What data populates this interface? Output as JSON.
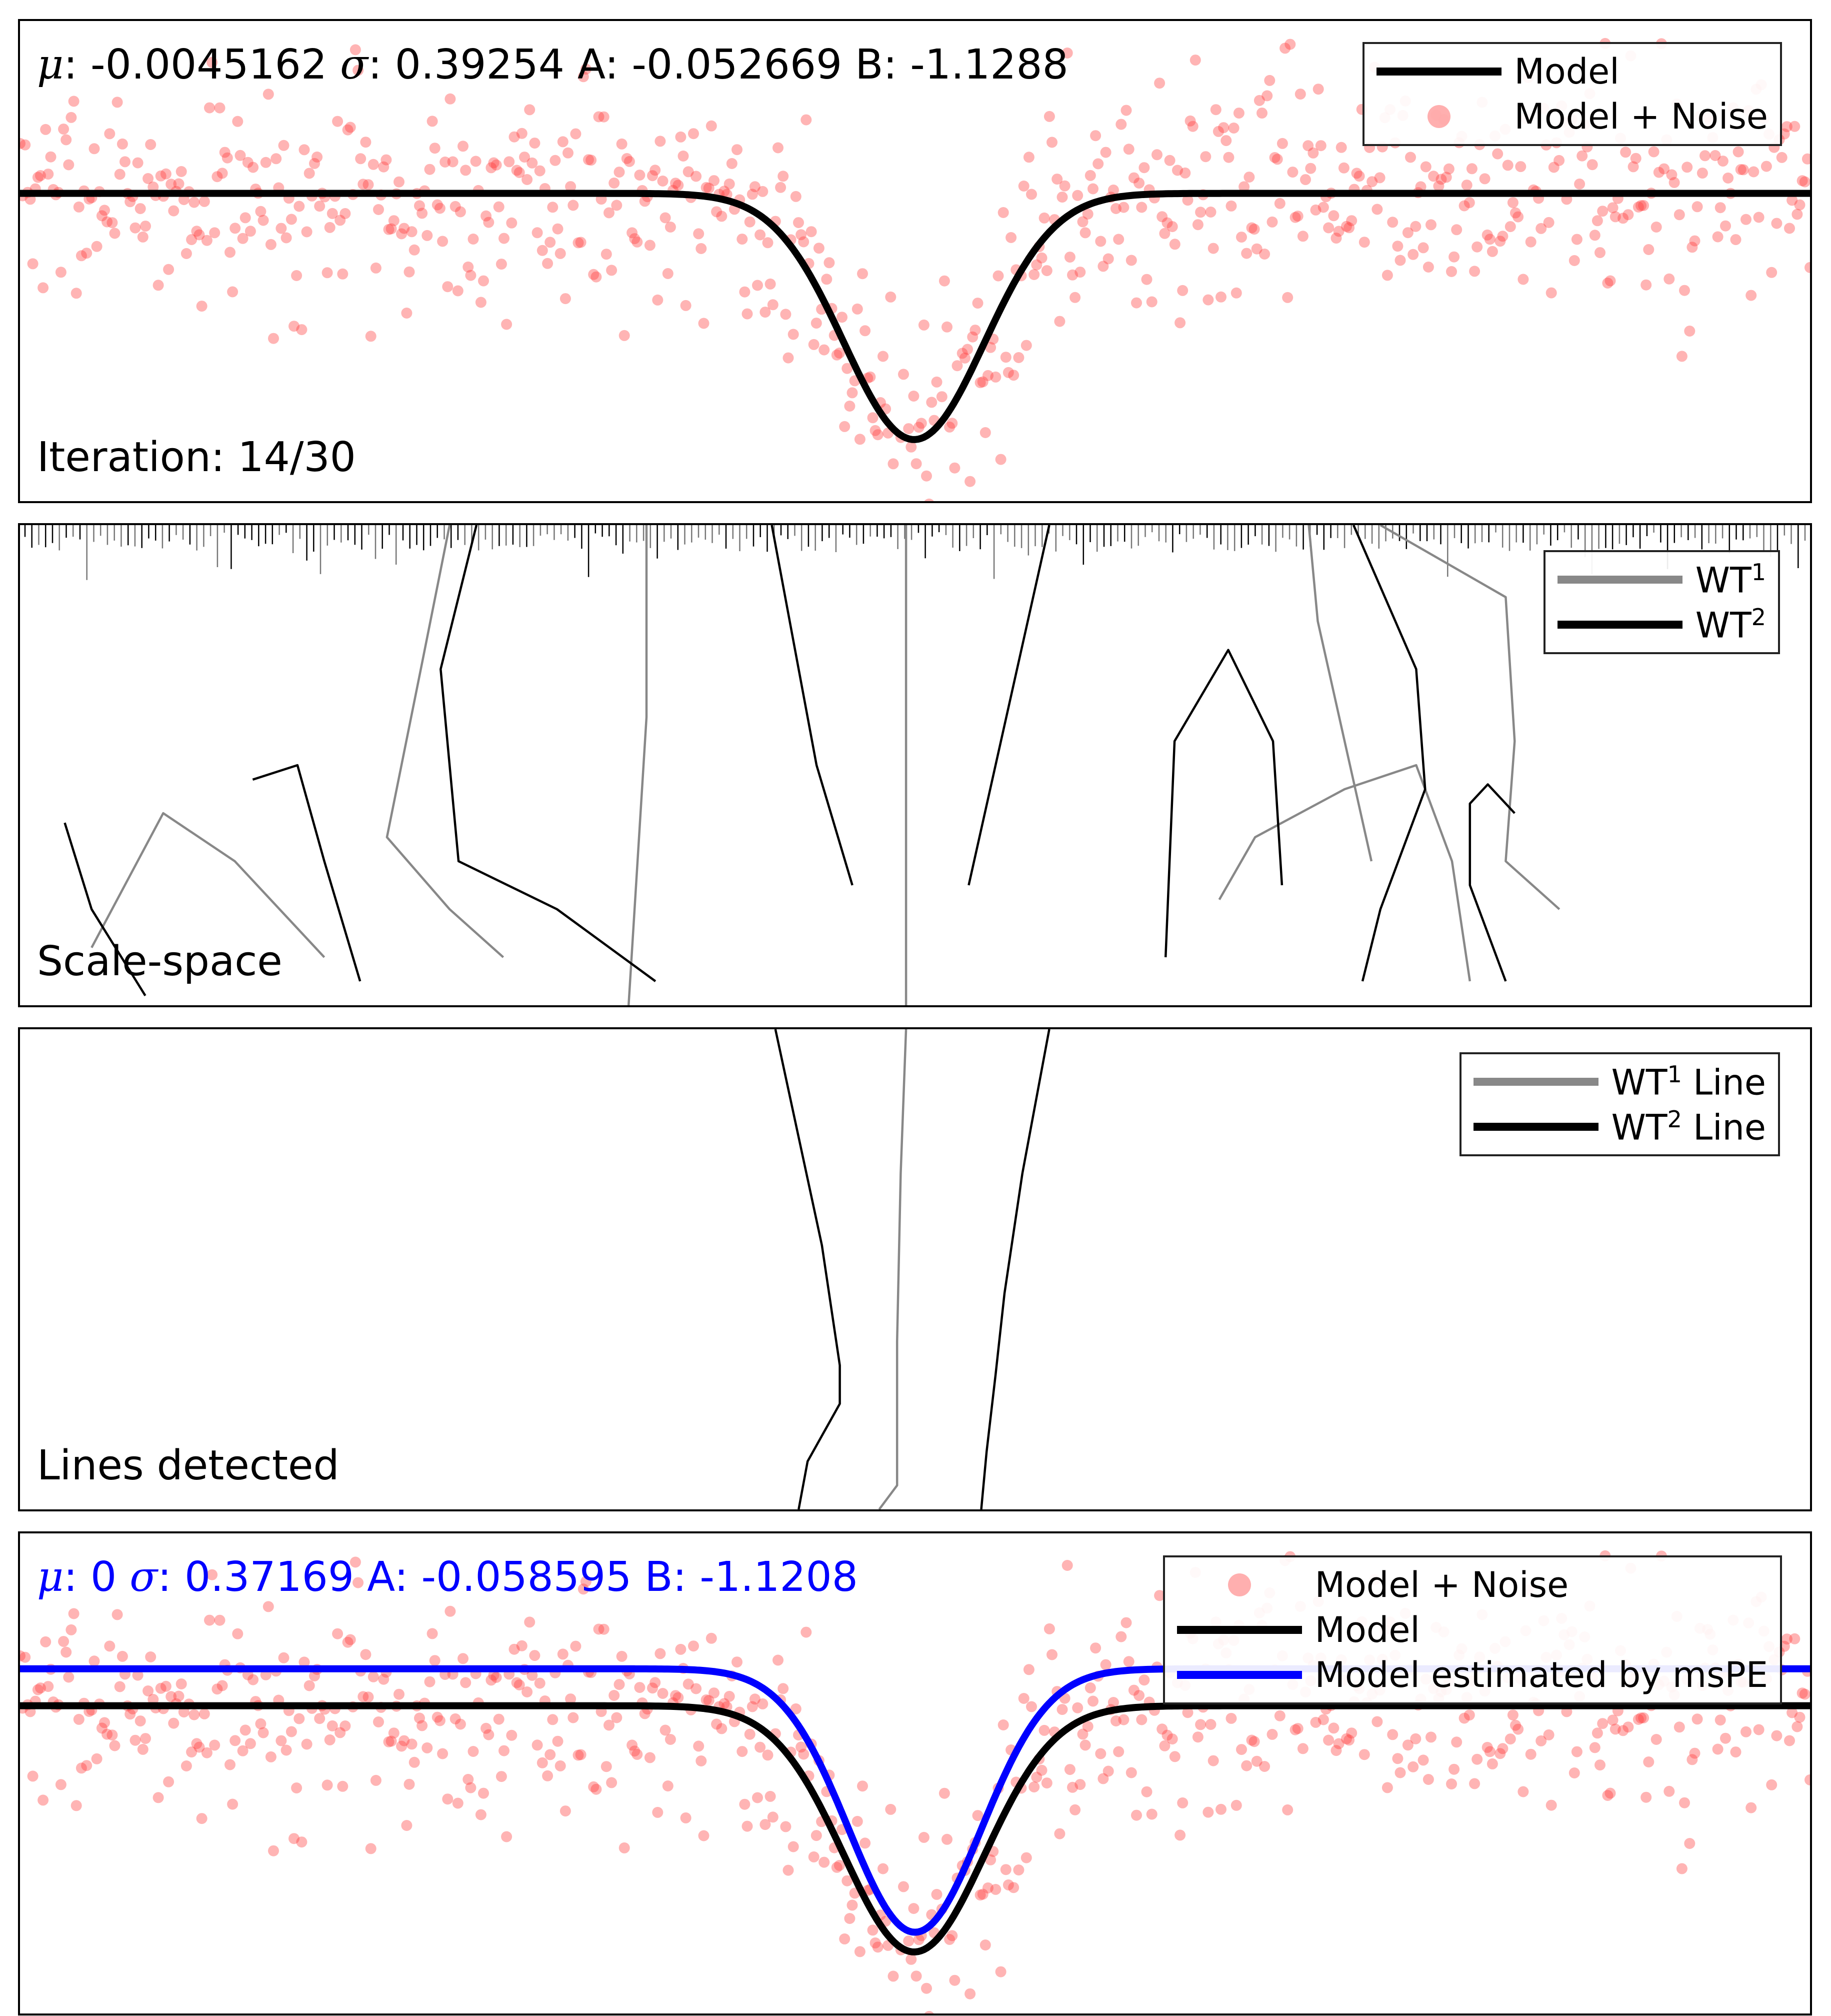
{
  "chart_data": [
    {
      "type": "scatter",
      "stats": {
        "mu_symbol": "μ",
        "mu": "-0.0045162",
        "sigma_symbol": "σ",
        "sigma": "0.39254",
        "a_label": "A",
        "a": "-0.052669",
        "b_label": "B",
        "b": "-1.1288"
      },
      "label": "Iteration: 14/30",
      "legend": [
        {
          "name": "Model",
          "color": "#000000",
          "kind": "line"
        },
        {
          "name": "Model + Noise",
          "color": "#ff8080",
          "kind": "marker"
        }
      ],
      "model": {
        "mu": -0.0045162,
        "sigma": 0.39254,
        "baseline": 0,
        "depth": 1.0
      },
      "noise": {
        "std": 0.32,
        "seed": 7
      },
      "xlim": [
        -5,
        5
      ],
      "ylim": [
        -1.25,
        0.7
      ],
      "grid": false,
      "legend_position": "top-right"
    },
    {
      "type": "line",
      "label": "Scale-space",
      "legend": [
        {
          "name": "WT",
          "sup": "1",
          "color": "#888888"
        },
        {
          "name": "WT",
          "sup": "2",
          "color": "#000000"
        }
      ],
      "legend_position": "top-right",
      "series": [
        {
          "name": "WT1",
          "color": "#888888",
          "paths": [
            [
              [
                -0.05,
                0
              ],
              [
                -0.05,
                1
              ]
            ],
            [
              [
                -2.6,
                1
              ],
              [
                -2.75,
                0.72
              ],
              [
                -2.95,
                0.35
              ],
              [
                -2.6,
                0.2
              ],
              [
                -2.3,
                0.1
              ]
            ],
            [
              [
                -1.5,
                1
              ],
              [
                -1.5,
                0.6
              ],
              [
                -1.55,
                0.3
              ],
              [
                -1.6,
                0
              ]
            ],
            [
              [
                -3.3,
                0.1
              ],
              [
                -3.8,
                0.3
              ],
              [
                -4.2,
                0.4
              ],
              [
                -4.6,
                0.12
              ]
            ],
            [
              [
                1.7,
                0.22
              ],
              [
                1.9,
                0.35
              ],
              [
                2.4,
                0.45
              ],
              [
                2.8,
                0.5
              ],
              [
                3.0,
                0.3
              ],
              [
                3.1,
                0.05
              ]
            ],
            [
              [
                2.2,
                1
              ],
              [
                2.25,
                0.8
              ],
              [
                2.4,
                0.55
              ],
              [
                2.55,
                0.3
              ]
            ],
            [
              [
                2.6,
                1
              ],
              [
                3.3,
                0.85
              ],
              [
                3.35,
                0.55
              ],
              [
                3.3,
                0.3
              ],
              [
                3.6,
                0.2
              ]
            ]
          ]
        },
        {
          "name": "WT2",
          "color": "#000000",
          "paths": [
            [
              [
                -2.45,
                1
              ],
              [
                -2.65,
                0.7
              ],
              [
                -2.55,
                0.3
              ],
              [
                -2.0,
                0.2
              ],
              [
                -1.45,
                0.05
              ]
            ],
            [
              [
                -0.8,
                1
              ],
              [
                -0.55,
                0.5
              ],
              [
                -0.35,
                0.25
              ]
            ],
            [
              [
                0.75,
                1
              ],
              [
                0.45,
                0.5
              ],
              [
                0.3,
                0.25
              ]
            ],
            [
              [
                2.45,
                1
              ],
              [
                2.8,
                0.7
              ],
              [
                2.85,
                0.45
              ],
              [
                2.6,
                0.2
              ],
              [
                2.5,
                0.05
              ]
            ],
            [
              [
                1.4,
                0.1
              ],
              [
                1.45,
                0.55
              ],
              [
                1.75,
                0.74
              ],
              [
                2.0,
                0.55
              ],
              [
                2.05,
                0.25
              ]
            ],
            [
              [
                -3.1,
                0.05
              ],
              [
                -3.3,
                0.3
              ],
              [
                -3.45,
                0.5
              ],
              [
                -3.7,
                0.47
              ]
            ],
            [
              [
                3.3,
                0.05
              ],
              [
                3.1,
                0.25
              ],
              [
                3.1,
                0.42
              ],
              [
                3.2,
                0.46
              ],
              [
                3.35,
                0.4
              ]
            ],
            [
              [
                -4.3,
                0.02
              ],
              [
                -4.6,
                0.2
              ],
              [
                -4.75,
                0.38
              ]
            ]
          ]
        }
      ]
    },
    {
      "type": "line",
      "label": "Lines detected",
      "legend": [
        {
          "name": "WT",
          "sup": "1",
          "suffix": " Line",
          "color": "#888888"
        },
        {
          "name": "WT",
          "sup": "2",
          "suffix": " Line",
          "color": "#000000"
        }
      ],
      "legend_position": "top-right",
      "series": [
        {
          "name": "WT1 Line",
          "color": "#888888",
          "paths": [
            [
              [
                -0.2,
                0
              ],
              [
                -0.1,
                0.05
              ],
              [
                -0.1,
                0.35
              ],
              [
                -0.08,
                0.7
              ],
              [
                -0.05,
                1
              ]
            ]
          ]
        },
        {
          "name": "WT2 Line",
          "color": "#000000",
          "paths": [
            [
              [
                -0.65,
                0
              ],
              [
                -0.6,
                0.1
              ],
              [
                -0.42,
                0.22
              ],
              [
                -0.42,
                0.3
              ],
              [
                -0.52,
                0.55
              ],
              [
                -0.78,
                1
              ]
            ],
            [
              [
                0.37,
                0
              ],
              [
                0.4,
                0.12
              ],
              [
                0.45,
                0.28
              ],
              [
                0.5,
                0.45
              ],
              [
                0.6,
                0.7
              ],
              [
                0.75,
                1
              ]
            ]
          ]
        }
      ]
    },
    {
      "type": "scatter",
      "stats": {
        "mu_symbol": "μ",
        "mu": "0",
        "sigma_symbol": "σ",
        "sigma": "0.37169",
        "a_label": "A",
        "a": "-0.058595",
        "b_label": "B",
        "b": "-1.1208"
      },
      "legend": [
        {
          "name": "Model + Noise",
          "color": "#ff8080",
          "kind": "marker"
        },
        {
          "name": "Model",
          "color": "#000000",
          "kind": "line"
        },
        {
          "name": "Model estimated by msPE",
          "color": "#0000ff",
          "kind": "line"
        }
      ],
      "model": {
        "mu": -0.0045162,
        "sigma": 0.39254,
        "baseline": 0,
        "depth": 1.0
      },
      "estimate": {
        "mu": 0,
        "sigma": 0.37169,
        "baseline": 0.15,
        "depth": 1.07
      },
      "noise": {
        "std": 0.32,
        "seed": 7
      },
      "xlim": [
        -5,
        5
      ],
      "ylim": [
        -1.25,
        0.7
      ],
      "grid": false,
      "legend_position": "top-right"
    }
  ]
}
